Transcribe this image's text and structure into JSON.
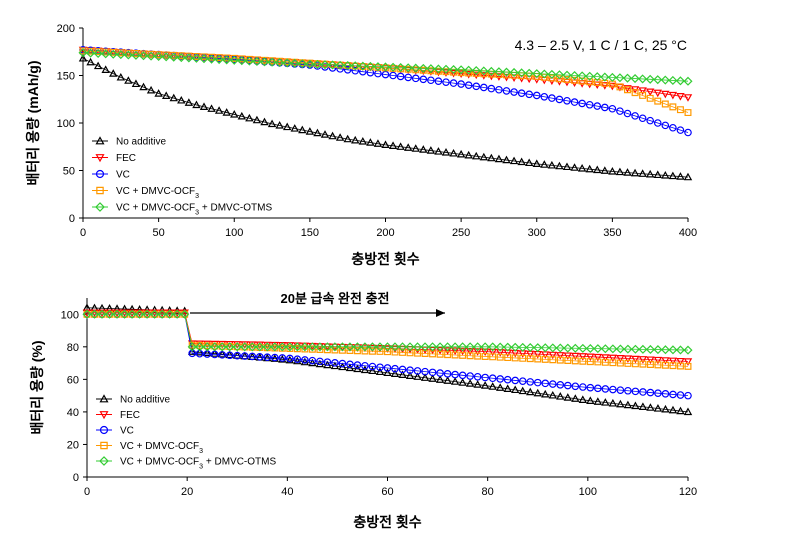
{
  "chart_data": [
    {
      "type": "scatter",
      "annotation": "4.3 – 2.5 V, 1 C / 1 C, 25 °C",
      "xlabel": "충방전 횟수",
      "ylabel": "배터리 용량 (mAh/g)",
      "xlim": [
        0,
        400
      ],
      "ylim": [
        0,
        200
      ],
      "xticks": [
        "0",
        "50",
        "100",
        "150",
        "200",
        "250",
        "300",
        "350",
        "400"
      ],
      "yticks": [
        "0",
        "50",
        "100",
        "150",
        "200"
      ],
      "legend_position": "bottom-left",
      "grid": false,
      "series": [
        {
          "name": "No additive",
          "color": "#000000",
          "marker": "triangle-up",
          "x": [
            0,
            25,
            50,
            75,
            100,
            125,
            150,
            175,
            200,
            225,
            250,
            275,
            300,
            325,
            350,
            375,
            400
          ],
          "y": [
            168,
            148,
            131,
            119,
            109,
            99,
            91,
            83,
            77,
            72,
            67,
            62,
            57,
            53,
            49,
            46,
            43
          ]
        },
        {
          "name": "FEC",
          "color": "#ff0000",
          "marker": "triangle-down",
          "x": [
            0,
            50,
            100,
            150,
            200,
            250,
            300,
            350,
            400
          ],
          "y": [
            177,
            172,
            168,
            163,
            158,
            152,
            146,
            139,
            127
          ]
        },
        {
          "name": "VC",
          "color": "#0000ff",
          "marker": "circle",
          "x": [
            0,
            50,
            100,
            150,
            200,
            250,
            300,
            350,
            400
          ],
          "y": [
            177,
            172,
            167,
            161,
            151,
            141,
            129,
            115,
            90
          ]
        },
        {
          "name": "VC + DMVC-OCF3",
          "color": "#ff9900",
          "marker": "square",
          "x": [
            0,
            50,
            100,
            150,
            200,
            250,
            300,
            350,
            400
          ],
          "y": [
            176,
            172,
            168,
            163,
            158,
            153,
            149,
            141,
            111
          ]
        },
        {
          "name": "VC + DMVC-OCF3 + DMVC-OTMS",
          "color": "#33cc33",
          "marker": "diamond",
          "x": [
            0,
            50,
            100,
            150,
            200,
            250,
            300,
            350,
            400
          ],
          "y": [
            174,
            170,
            166,
            162,
            159,
            156,
            152,
            148,
            144
          ]
        }
      ]
    },
    {
      "type": "scatter",
      "annotation": "20분 급속 완전 충전",
      "xlabel": "충방전 횟수",
      "ylabel": "배터리 용량 (%)",
      "xlim": [
        0,
        120
      ],
      "ylim": [
        0,
        110
      ],
      "xticks": [
        "0",
        "20",
        "40",
        "60",
        "80",
        "100",
        "120"
      ],
      "yticks": [
        "0",
        "20",
        "40",
        "60",
        "80",
        "100"
      ],
      "legend_position": "bottom-left",
      "grid": false,
      "series": [
        {
          "name": "No additive",
          "color": "#000000",
          "marker": "triangle-up",
          "x": [
            0,
            10,
            20,
            21,
            40,
            60,
            80,
            100,
            120
          ],
          "y": [
            104,
            103,
            102,
            77,
            72,
            64,
            56,
            47,
            40
          ]
        },
        {
          "name": "FEC",
          "color": "#ff0000",
          "marker": "triangle-down",
          "x": [
            0,
            10,
            20,
            21,
            40,
            60,
            80,
            100,
            120
          ],
          "y": [
            101,
            101,
            101,
            82,
            81,
            79,
            77,
            74,
            71
          ]
        },
        {
          "name": "VC",
          "color": "#0000ff",
          "marker": "circle",
          "x": [
            0,
            10,
            20,
            21,
            40,
            60,
            80,
            100,
            120
          ],
          "y": [
            100,
            100,
            100,
            76,
            73,
            67,
            61,
            55,
            50
          ]
        },
        {
          "name": "VC + DMVC-OCF3",
          "color": "#ff9900",
          "marker": "square",
          "x": [
            0,
            10,
            20,
            21,
            40,
            60,
            80,
            100,
            120
          ],
          "y": [
            100,
            100,
            100,
            81,
            79,
            77,
            74,
            71,
            68
          ]
        },
        {
          "name": "VC + DMVC-OCF3 + DMVC-OTMS",
          "color": "#33cc33",
          "marker": "diamond",
          "x": [
            0,
            10,
            20,
            21,
            40,
            60,
            80,
            100,
            120
          ],
          "y": [
            100,
            100,
            100,
            80,
            80,
            80,
            80,
            79,
            78
          ]
        }
      ]
    }
  ]
}
